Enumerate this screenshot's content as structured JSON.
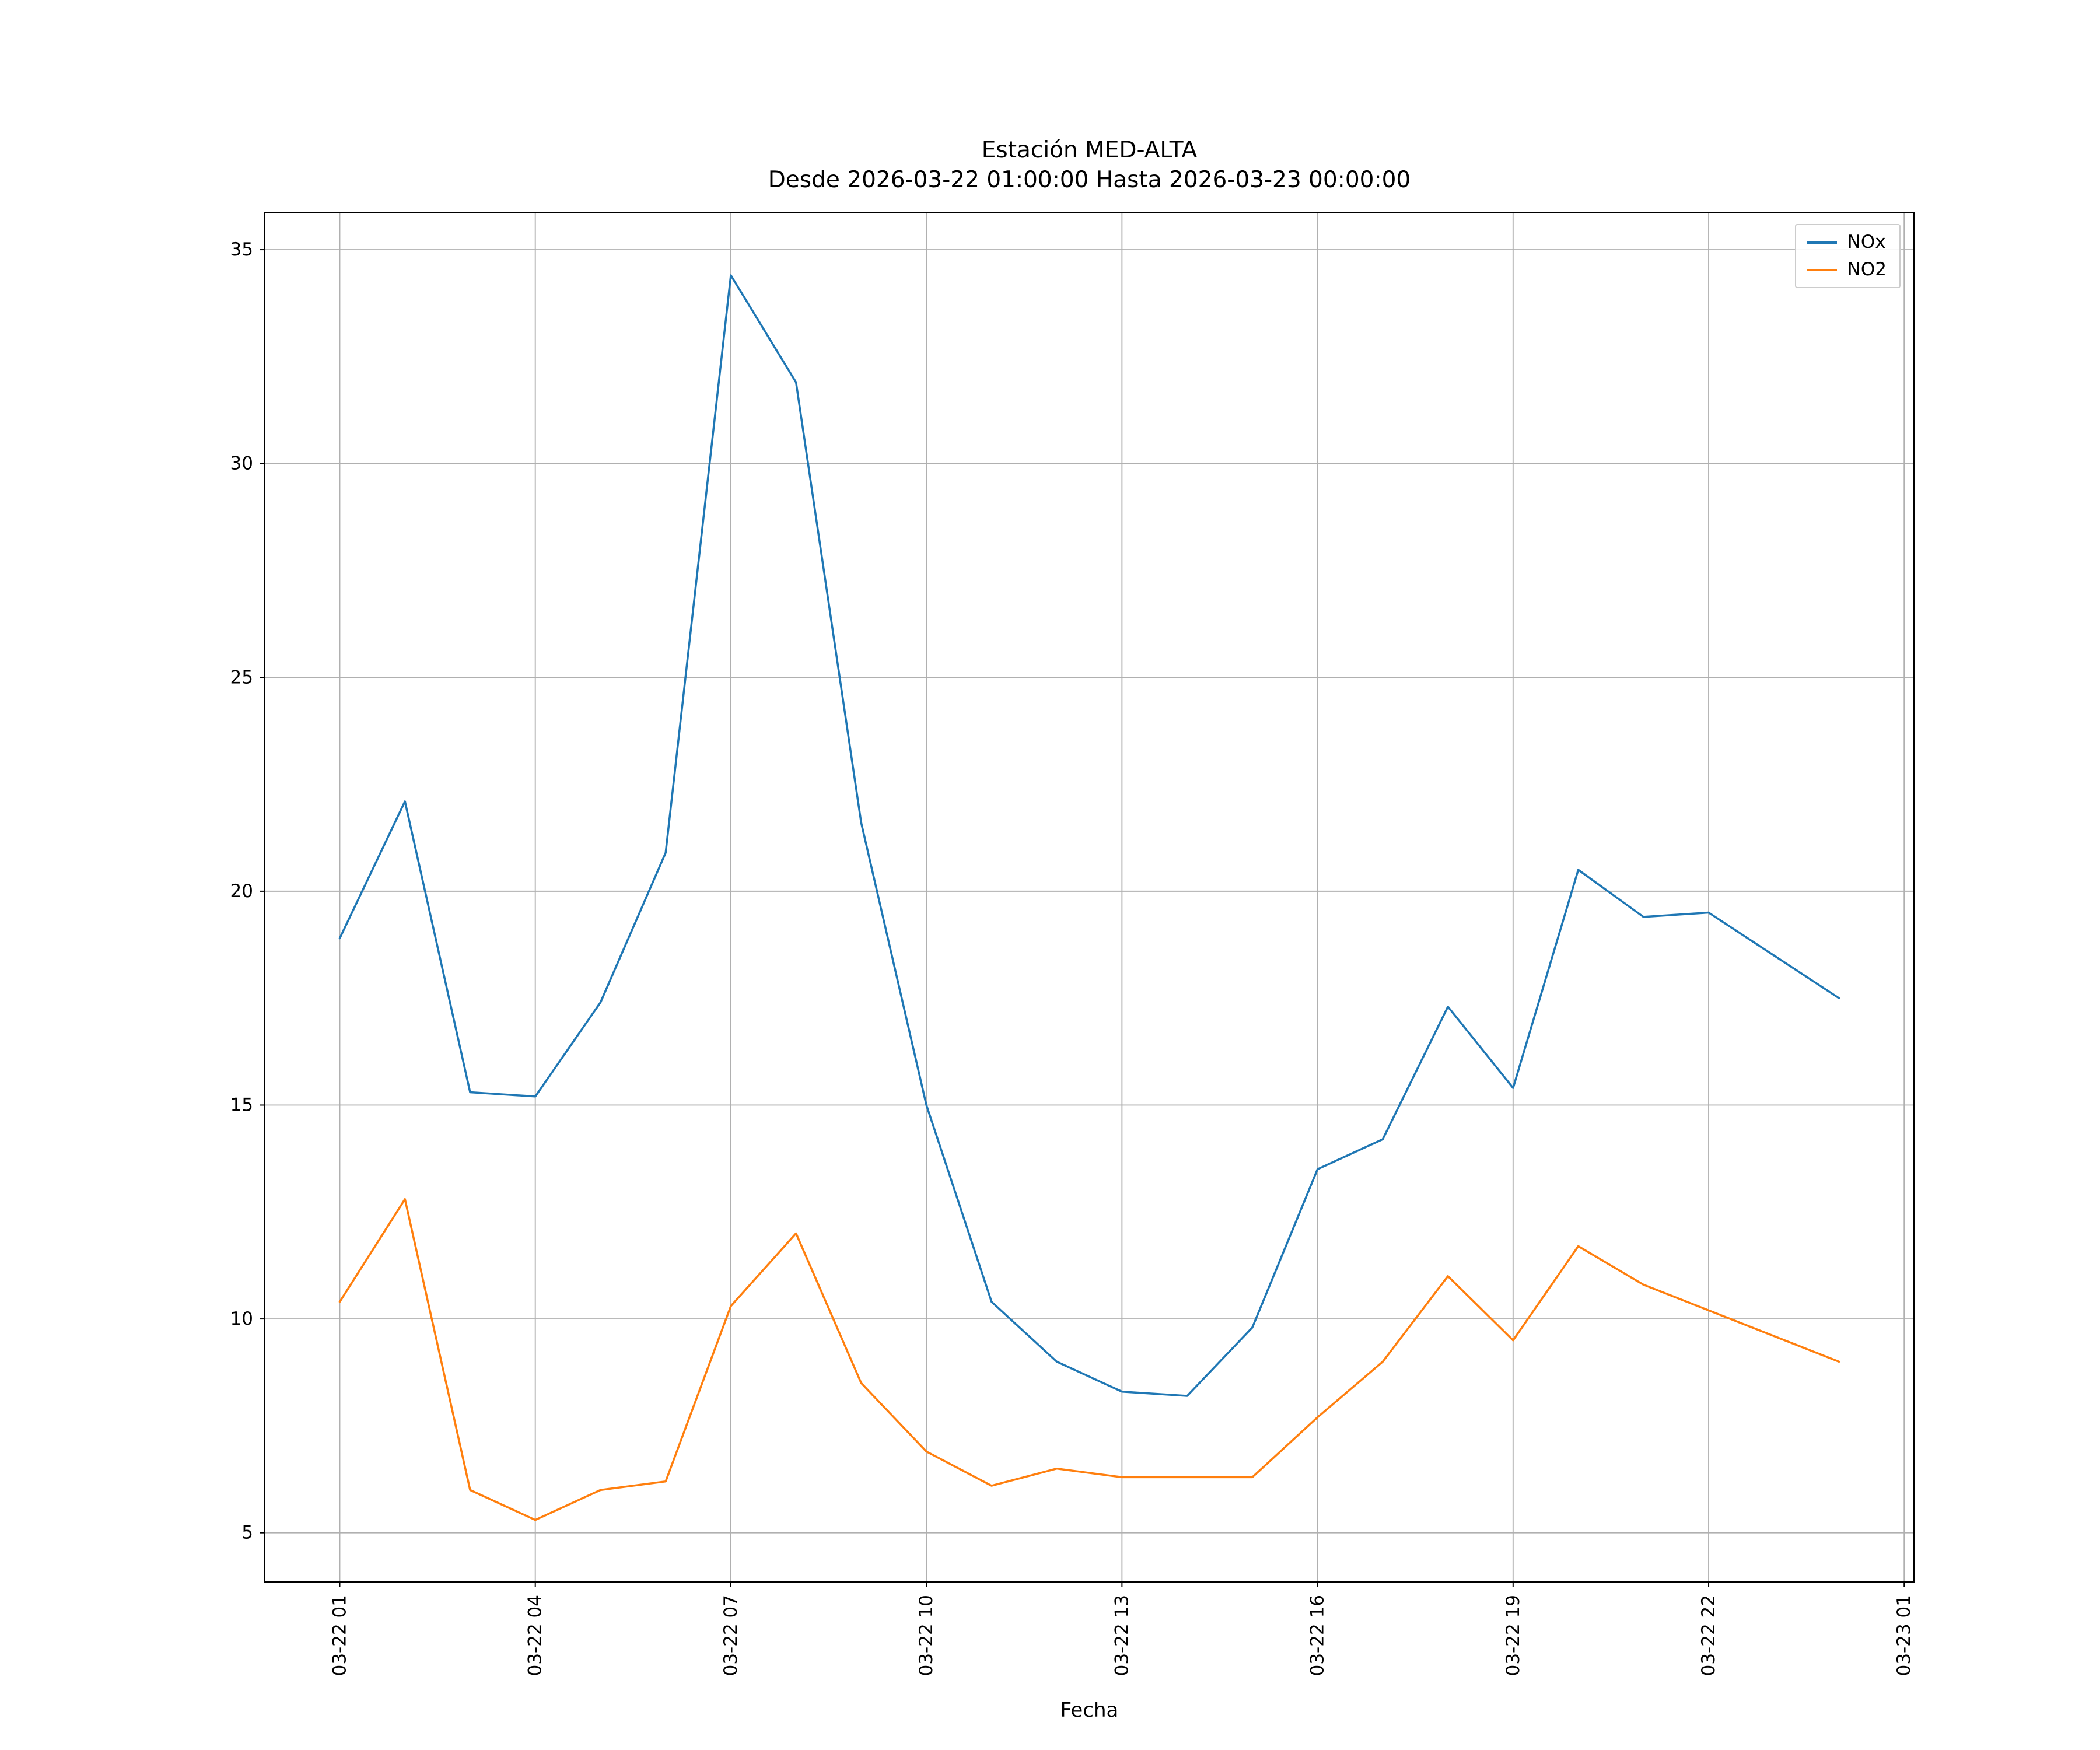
{
  "chart_data": {
    "type": "line",
    "title": "Estación MED-ALTA",
    "subtitle": "Desde 2026-03-22 01:00:00 Hasta 2026-03-23 00:00:00",
    "xlabel": "Fecha",
    "ylabel": "",
    "grid": true,
    "legend_position": "top-right",
    "background_color": "#ffffff",
    "grid_color": "#b0b0b0",
    "xlim_hours": [
      -1.15,
      24.15
    ],
    "ylim": [
      3.85,
      35.86
    ],
    "y_ticks": [
      5,
      10,
      15,
      20,
      25,
      30,
      35
    ],
    "x_tick_hours": [
      0,
      3,
      6,
      9,
      12,
      15,
      18,
      21,
      24
    ],
    "x_tick_labels": [
      "03-22 01",
      "03-22 04",
      "03-22 07",
      "03-22 10",
      "03-22 13",
      "03-22 16",
      "03-22 19",
      "03-22 22",
      "03-23 01"
    ],
    "x_hours": [
      0,
      1,
      2,
      3,
      4,
      5,
      6,
      7,
      8,
      9,
      10,
      11,
      12,
      13,
      14,
      15,
      16,
      17,
      18,
      19,
      20,
      21,
      22,
      23
    ],
    "x_times": [
      "03-22 01:00",
      "03-22 02:00",
      "03-22 03:00",
      "03-22 04:00",
      "03-22 05:00",
      "03-22 06:00",
      "03-22 07:00",
      "03-22 08:00",
      "03-22 09:00",
      "03-22 10:00",
      "03-22 11:00",
      "03-22 12:00",
      "03-22 13:00",
      "03-22 14:00",
      "03-22 15:00",
      "03-22 16:00",
      "03-22 17:00",
      "03-22 18:00",
      "03-22 19:00",
      "03-22 20:00",
      "03-22 21:00",
      "03-22 22:00",
      "03-22 23:00",
      "03-23 00:00"
    ],
    "series": [
      {
        "name": "NOx",
        "color": "#1f77b4",
        "values": [
          18.9,
          22.1,
          15.3,
          15.2,
          17.4,
          20.9,
          34.4,
          31.9,
          21.6,
          15.0,
          10.4,
          9.0,
          8.3,
          8.2,
          9.8,
          13.5,
          14.2,
          17.3,
          15.4,
          20.5,
          19.4,
          19.5,
          18.5,
          17.5
        ]
      },
      {
        "name": "NO2",
        "color": "#ff7f0e",
        "values": [
          10.4,
          12.8,
          6.0,
          5.3,
          6.0,
          6.2,
          10.3,
          12.0,
          8.5,
          6.9,
          6.1,
          6.5,
          6.3,
          6.3,
          6.3,
          7.7,
          9.0,
          11.0,
          9.5,
          11.7,
          10.8,
          10.2,
          9.6,
          9.0
        ]
      }
    ]
  }
}
